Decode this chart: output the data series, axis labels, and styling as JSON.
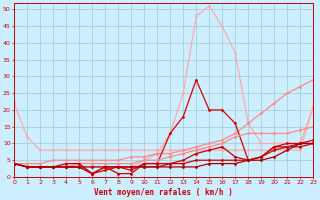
{
  "background_color": "#cceeff",
  "grid_color": "#99cccc",
  "xlabel": "Vent moyen/en rafales ( km/h )",
  "xlim": [
    0,
    23
  ],
  "ylim": [
    0,
    52
  ],
  "yticks": [
    0,
    5,
    10,
    15,
    20,
    25,
    30,
    35,
    40,
    45,
    50
  ],
  "xticks": [
    0,
    1,
    2,
    3,
    4,
    5,
    6,
    7,
    8,
    9,
    10,
    11,
    12,
    13,
    14,
    15,
    16,
    17,
    18,
    19,
    20,
    21,
    22,
    23
  ],
  "series": [
    {
      "x": [
        0,
        1,
        2,
        3,
        4,
        5,
        6,
        7,
        8,
        9,
        10,
        11,
        12,
        13,
        14,
        15,
        16,
        17,
        18,
        19,
        20,
        21,
        22,
        23
      ],
      "y": [
        22,
        12,
        8,
        8,
        8,
        8,
        8,
        8,
        8,
        8,
        8,
        8,
        8,
        8,
        8,
        8,
        8,
        8,
        8,
        8,
        8,
        8,
        8,
        21
      ],
      "color": "#ffaaaa",
      "linewidth": 0.9,
      "marker": "D",
      "markersize": 1.5
    },
    {
      "x": [
        0,
        1,
        2,
        3,
        4,
        5,
        6,
        7,
        8,
        9,
        10,
        11,
        12,
        13,
        14,
        15,
        16,
        17,
        18,
        19,
        20,
        21,
        22,
        23
      ],
      "y": [
        4,
        3,
        3,
        3,
        3,
        3,
        3,
        3,
        3,
        3,
        5,
        7,
        13,
        25,
        48,
        51,
        45,
        37,
        16,
        10,
        10,
        10,
        10,
        21
      ],
      "color": "#ffaaaa",
      "linewidth": 0.9,
      "marker": "D",
      "markersize": 1.5
    },
    {
      "x": [
        0,
        1,
        2,
        3,
        4,
        5,
        6,
        7,
        8,
        9,
        10,
        11,
        12,
        13,
        14,
        15,
        16,
        17,
        18,
        19,
        20,
        21,
        22,
        23
      ],
      "y": [
        4,
        4,
        4,
        5,
        5,
        5,
        5,
        5,
        5,
        6,
        6,
        7,
        7,
        8,
        9,
        10,
        11,
        13,
        16,
        19,
        22,
        25,
        27,
        29
      ],
      "color": "#ff8888",
      "linewidth": 0.9,
      "marker": "D",
      "markersize": 1.5
    },
    {
      "x": [
        0,
        1,
        2,
        3,
        4,
        5,
        6,
        7,
        8,
        9,
        10,
        11,
        12,
        13,
        14,
        15,
        16,
        17,
        18,
        19,
        20,
        21,
        22,
        23
      ],
      "y": [
        4,
        3,
        3,
        3,
        3,
        3,
        1,
        2,
        3,
        2,
        4,
        4,
        13,
        18,
        29,
        20,
        20,
        16,
        5,
        6,
        9,
        9,
        9,
        10
      ],
      "color": "#dd0000",
      "linewidth": 0.9,
      "marker": "D",
      "markersize": 1.5
    },
    {
      "x": [
        0,
        1,
        2,
        3,
        4,
        5,
        6,
        7,
        8,
        9,
        10,
        11,
        12,
        13,
        14,
        15,
        16,
        17,
        18,
        19,
        20,
        21,
        22,
        23
      ],
      "y": [
        4,
        3,
        3,
        3,
        3,
        4,
        4,
        4,
        4,
        4,
        5,
        5,
        6,
        7,
        8,
        9,
        10,
        12,
        13,
        13,
        13,
        13,
        14,
        15
      ],
      "color": "#ff8888",
      "linewidth": 0.9,
      "marker": "D",
      "markersize": 1.5
    },
    {
      "x": [
        0,
        1,
        2,
        3,
        4,
        5,
        6,
        7,
        8,
        9,
        10,
        11,
        12,
        13,
        14,
        15,
        16,
        17,
        18,
        19,
        20,
        21,
        22,
        23
      ],
      "y": [
        4,
        3,
        3,
        3,
        3,
        3,
        1,
        3,
        3,
        3,
        3,
        3,
        4,
        4,
        5,
        5,
        5,
        5,
        5,
        6,
        8,
        9,
        10,
        10
      ],
      "color": "#cc0000",
      "linewidth": 0.9,
      "marker": "D",
      "markersize": 1.5
    },
    {
      "x": [
        0,
        1,
        2,
        3,
        4,
        5,
        6,
        7,
        8,
        9,
        10,
        11,
        12,
        13,
        14,
        15,
        16,
        17,
        18,
        19,
        20,
        21,
        22,
        23
      ],
      "y": [
        4,
        3,
        3,
        3,
        4,
        4,
        1,
        3,
        1,
        1,
        4,
        4,
        4,
        5,
        7,
        8,
        9,
        6,
        5,
        6,
        9,
        10,
        10,
        11
      ],
      "color": "#cc0000",
      "linewidth": 0.9,
      "marker": "D",
      "markersize": 1.5
    },
    {
      "x": [
        0,
        1,
        2,
        3,
        4,
        5,
        6,
        7,
        8,
        9,
        10,
        11,
        12,
        13,
        14,
        15,
        16,
        17,
        18,
        19,
        20,
        21,
        22,
        23
      ],
      "y": [
        4,
        3,
        3,
        3,
        3,
        3,
        3,
        3,
        3,
        3,
        3,
        3,
        3,
        3,
        3,
        4,
        4,
        4,
        5,
        5,
        6,
        8,
        10,
        10
      ],
      "color": "#aa0000",
      "linewidth": 0.9,
      "marker": "D",
      "markersize": 1.5
    }
  ]
}
